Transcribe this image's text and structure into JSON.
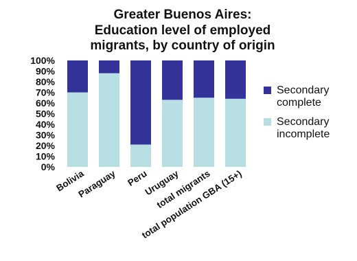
{
  "chart_data": {
    "type": "bar",
    "stacked": true,
    "title": [
      "Greater Buenos Aires:",
      "Education level of employed",
      "migrants, by country of origin"
    ],
    "xlabel": "",
    "ylabel": "",
    "categories": [
      "Bolivia",
      "Paraguay",
      "Peru",
      "Uruguay",
      "total migrants",
      "total population GBA (15+)"
    ],
    "series": [
      {
        "name": "Secondary incomplete",
        "values": [
          70,
          88,
          21,
          63,
          65,
          64
        ],
        "color": "#b8e0e4"
      },
      {
        "name": "Secondary complete",
        "values": [
          30,
          12,
          79,
          37,
          35,
          36
        ],
        "color": "#33339a"
      }
    ],
    "y_ticks": [
      "0%",
      "10%",
      "20%",
      "30%",
      "40%",
      "50%",
      "60%",
      "70%",
      "80%",
      "90%",
      "100%"
    ],
    "ylim": [
      0,
      100
    ],
    "grid": false,
    "legend": {
      "position": "right",
      "entries": [
        {
          "series": "Secondary complete",
          "lines": [
            "Secondary",
            "complete"
          ]
        },
        {
          "series": "Secondary incomplete",
          "lines": [
            "Secondary",
            "incomplete"
          ]
        }
      ]
    }
  }
}
